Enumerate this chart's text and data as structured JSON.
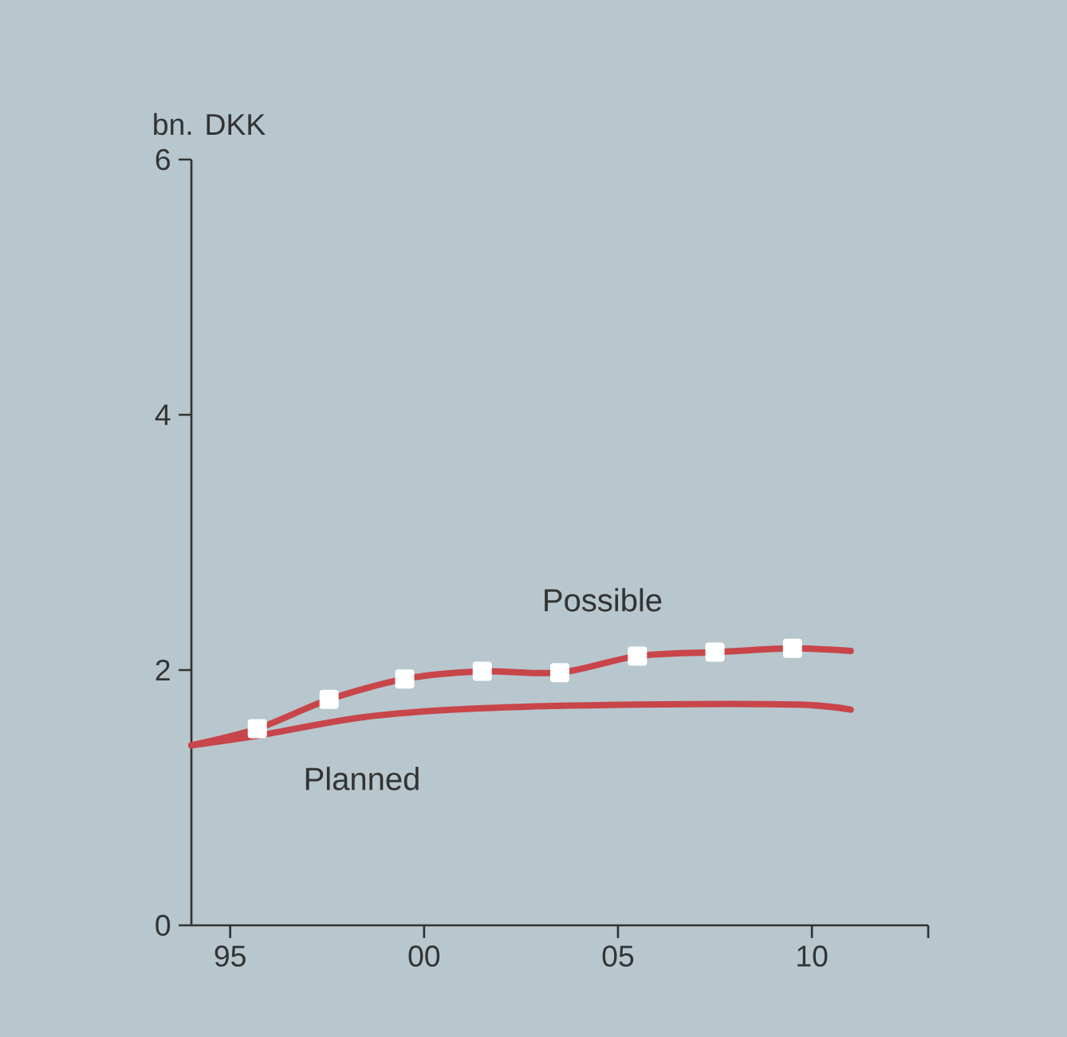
{
  "chart_data": {
    "type": "line",
    "ylabel": "bn. DKK",
    "xlim": [
      1994,
      2013
    ],
    "xticks": [
      {
        "value": 1995,
        "label": "95"
      },
      {
        "value": 2000,
        "label": "00"
      },
      {
        "value": 2005,
        "label": "05"
      },
      {
        "value": 2010,
        "label": "10"
      },
      {
        "value": 2013,
        "label": null
      }
    ],
    "ylim": [
      0,
      6
    ],
    "yticks": [
      0,
      2,
      4,
      6
    ],
    "grid": false,
    "legend": false,
    "series": [
      {
        "name": "Possible",
        "color": "#c8454a",
        "marker": "square",
        "x": [
          1994,
          1995.7,
          1997.55,
          1999.5,
          2001.5,
          2003.5,
          2005.5,
          2007.5,
          2009.5,
          2011
        ],
        "values": [
          1.41,
          1.54,
          1.77,
          1.93,
          1.99,
          1.98,
          2.11,
          2.14,
          2.17,
          2.15
        ]
      },
      {
        "name": "Planned",
        "color": "#c8454a",
        "x": [
          1994,
          1995.6,
          1998.4,
          2001.4,
          2005.5,
          2009.6,
          2011
        ],
        "values": [
          1.41,
          1.48,
          1.63,
          1.7,
          1.73,
          1.73,
          1.69
        ]
      }
    ]
  }
}
